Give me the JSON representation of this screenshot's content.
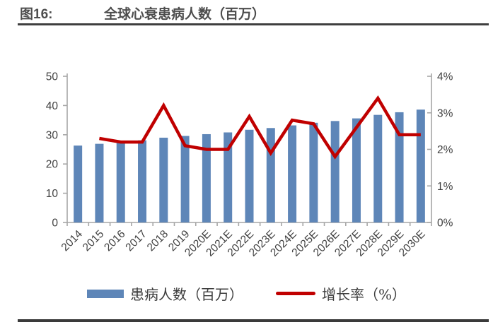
{
  "header": {
    "figure_label": "图16:",
    "title": "全球心衰患病人数（百万）"
  },
  "legend": {
    "series1": "患病人数（百万）",
    "series2": "增长率（%）"
  },
  "colors": {
    "bar": "#5E86B8",
    "line": "#C00000",
    "axis": "#A6A6A6",
    "tick_text": "#404040",
    "title_text": "#4D4D4D",
    "rule": "#3A3A3A"
  },
  "chart_data": {
    "type": "bar+line combo",
    "title": "全球心衰患病人数（百万）",
    "categories": [
      "2014",
      "2015",
      "2016",
      "2017",
      "2018",
      "2019",
      "2020E",
      "2021E",
      "2022E",
      "2023E",
      "2024E",
      "2025E",
      "2026E",
      "2027E",
      "2028E",
      "2029E",
      "2030E"
    ],
    "series": [
      {
        "name": "患病人数（百万）",
        "type": "bar",
        "axis": "left",
        "values": [
          26.3,
          26.9,
          27.5,
          28.1,
          29.0,
          29.6,
          30.2,
          30.8,
          31.7,
          32.3,
          33.2,
          34.1,
          34.7,
          35.6,
          36.8,
          37.7,
          38.6
        ]
      },
      {
        "name": "增长率（%）",
        "type": "line",
        "axis": "right",
        "values": [
          null,
          2.3,
          2.2,
          2.2,
          3.2,
          2.1,
          2.0,
          2.0,
          2.9,
          1.9,
          2.8,
          2.7,
          1.8,
          2.6,
          3.4,
          2.4,
          2.4
        ]
      }
    ],
    "left_axis": {
      "min": 0,
      "max": 50,
      "ticks": [
        0,
        10,
        20,
        30,
        40,
        50
      ]
    },
    "right_axis": {
      "min": 0,
      "max": 4,
      "ticks": [
        "0%",
        "1%",
        "2%",
        "3%",
        "4%"
      ]
    },
    "grid": false,
    "legend_position": "bottom",
    "x_label_rotation_deg": 45
  }
}
